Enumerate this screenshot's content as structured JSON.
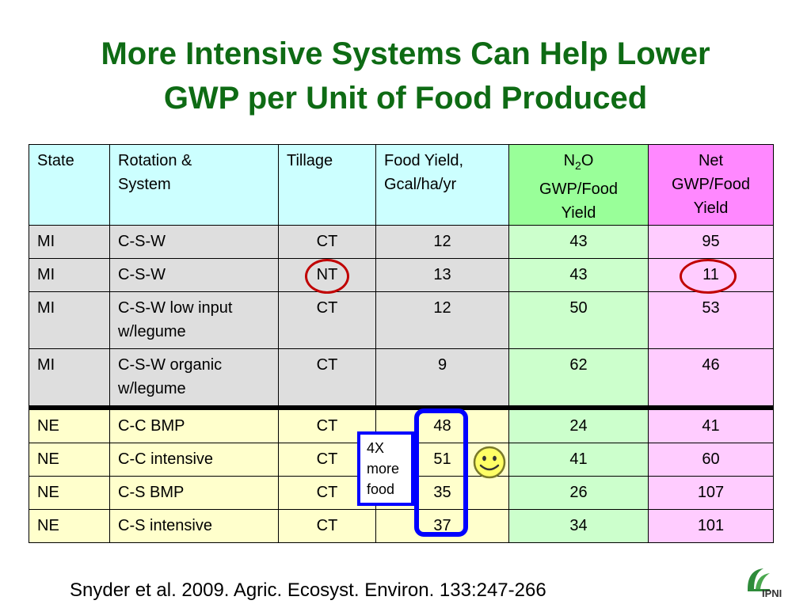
{
  "title": {
    "line1": "More Intensive Systems Can Help Lower",
    "line2": "GWP per Unit of Food Produced"
  },
  "table": {
    "headers": {
      "state": "State",
      "rotation_line1": "Rotation &",
      "rotation_line2": "System",
      "tillage": "Tillage",
      "yield_line1": "Food Yield,",
      "yield_line2": "Gcal/ha/yr",
      "n2o_prefix": "N",
      "n2o_sub": "2",
      "n2o_suffix": "O",
      "n2o_line2": "GWP/Food",
      "n2o_line3": "Yield",
      "net_line1": "Net",
      "net_line2": "GWP/Food",
      "net_line3": "Yield"
    },
    "rows": [
      {
        "state": "MI",
        "system": "C-S-W",
        "tillage": "CT",
        "yield": "12",
        "n2o": "43",
        "net": "95"
      },
      {
        "state": "MI",
        "system": "C-S-W",
        "tillage": "NT",
        "yield": "13",
        "n2o": "43",
        "net": "11"
      },
      {
        "state": "MI",
        "system_line1": "C-S-W low input",
        "system_line2": "w/legume",
        "tillage": "CT",
        "yield": "12",
        "n2o": "50",
        "net": "53"
      },
      {
        "state": "MI",
        "system_line1": "C-S-W organic",
        "system_line2": "w/legume",
        "tillage": "CT",
        "yield": "9",
        "n2o": "62",
        "net": "46"
      },
      {
        "state": "NE",
        "system": "C-C BMP",
        "tillage": "CT",
        "yield": "48",
        "n2o": "24",
        "net": "41"
      },
      {
        "state": "NE",
        "system": "C-C intensive",
        "tillage": "CT",
        "yield": "51",
        "n2o": "41",
        "net": "60"
      },
      {
        "state": "NE",
        "system": "C-S BMP",
        "tillage": "CT",
        "yield": "35",
        "n2o": "26",
        "net": "107"
      },
      {
        "state": "NE",
        "system": "C-S intensive",
        "tillage": "CT",
        "yield": "37",
        "n2o": "34",
        "net": "101"
      }
    ]
  },
  "callout": {
    "line1": "4X",
    "line2": "more",
    "line3": "food"
  },
  "smiley_icon": "smiley-face-icon",
  "citation": "Snyder et al. 2009. Agric. Ecosyst. Environ. 133:247-266",
  "logo": {
    "text": "IPNI"
  },
  "colors": {
    "title": "#0e6b14",
    "header_cyan": "#ccffff",
    "header_green": "#99ff99",
    "header_pink": "#ff88ff",
    "cell_gray": "#dedede",
    "cell_yellow": "#ffffcc",
    "cell_green": "#ccffcc",
    "cell_pink": "#ffccff",
    "highlight_ring": "#c00000",
    "highlight_box": "#0000ff"
  }
}
